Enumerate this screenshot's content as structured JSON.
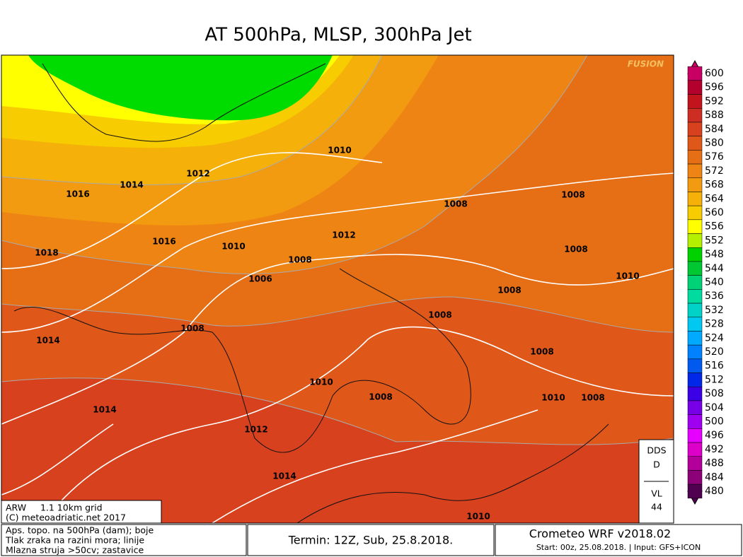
{
  "title": "AT 500hPa, MLSP, 300hPa Jet",
  "watermark": "FUSION",
  "colorbar": {
    "levels": [
      600,
      596,
      592,
      588,
      584,
      580,
      576,
      572,
      568,
      564,
      560,
      556,
      552,
      548,
      544,
      540,
      536,
      532,
      528,
      524,
      520,
      516,
      512,
      508,
      504,
      500,
      496,
      492,
      488,
      484,
      480
    ],
    "colors": [
      "#c80064",
      "#b4002d",
      "#c3141e",
      "#cd2d23",
      "#d7411e",
      "#e0571a",
      "#e66e14",
      "#ee8414",
      "#f29a10",
      "#f5b00a",
      "#f7cc00",
      "#ffff00",
      "#b4f000",
      "#00d200",
      "#00c832",
      "#00d278",
      "#00dca0",
      "#00d2c8",
      "#00c8f0",
      "#00aaff",
      "#0082ff",
      "#005af0",
      "#0028e6",
      "#3c00e6",
      "#7800e6",
      "#a000f0",
      "#e600ff",
      "#dc00c8",
      "#b4009b",
      "#8c0078",
      "#500050"
    ]
  },
  "isobar_labels": [
    "1010",
    "1012",
    "1014",
    "1016",
    "1018",
    "1016",
    "1010",
    "1012",
    "1008",
    "1008",
    "1008",
    "1006",
    "1008",
    "1010",
    "1008",
    "1008",
    "1008",
    "1014",
    "1008",
    "1010",
    "1008",
    "1010",
    "1008",
    "1014",
    "1012",
    "1014",
    "1010"
  ],
  "info_box": {
    "model": "ARW     1.1 10km grid",
    "copyright": "(C) meteoadriatic.net 2017"
  },
  "legend_notes": [
    "Aps. topo. na 500hPa (dam); boje",
    "Tlak zraka na razini mora; linije",
    "Mlazna struja >50cv; zastavice"
  ],
  "run_time": "Termin: 12Z, Sub, 25.8.2018.",
  "model_name": "Crometeo WRF v2018.02",
  "start_info": "Start: 00z, 25.08.2018. | Input: GFS+ICON",
  "station_box": [
    "DDS",
    "D",
    "VL",
    "44"
  ]
}
